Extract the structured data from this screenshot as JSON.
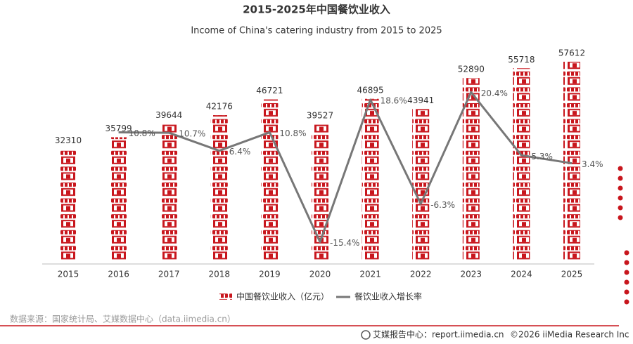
{
  "chart_data": {
    "type": "bar-line",
    "title": "2015-2025年中国餐饮业收入",
    "subtitle": "Income of China's catering industry from 2015 to 2025",
    "categories": [
      "2015",
      "2016",
      "2017",
      "2018",
      "2019",
      "2020",
      "2021",
      "2022",
      "2023",
      "2024",
      "2025"
    ],
    "series": [
      {
        "name": "中国餐饮业收入（亿元）",
        "color": "#c8161d",
        "type": "bar",
        "values": [
          32310,
          35799,
          39644,
          42176,
          46721,
          39527,
          46895,
          43941,
          52890,
          55718,
          57612
        ]
      },
      {
        "name": "餐饮业收入增长率",
        "color": "#777777",
        "type": "line",
        "axis": "y2",
        "values": [
          null,
          10.8,
          10.7,
          6.4,
          10.8,
          -15.4,
          18.6,
          -6.3,
          20.4,
          5.3,
          3.4
        ],
        "value_labels": [
          null,
          "10.8%",
          "10.7%",
          "6.4%",
          "10.8%",
          "-15.4%",
          "18.6%",
          "-6.3%",
          "20.4%",
          "5.3%",
          "3.4%"
        ]
      }
    ],
    "ylim": [
      0,
      58000
    ],
    "y2lim": [
      -20,
      28
    ],
    "source": "数据来源：国家统计局、艾媒数据中心（data.iimedia.cn）",
    "footer_site": "艾媒报告中心：report.iimedia.cn",
    "copyright": "©2026  iiMedia Research  Inc"
  }
}
